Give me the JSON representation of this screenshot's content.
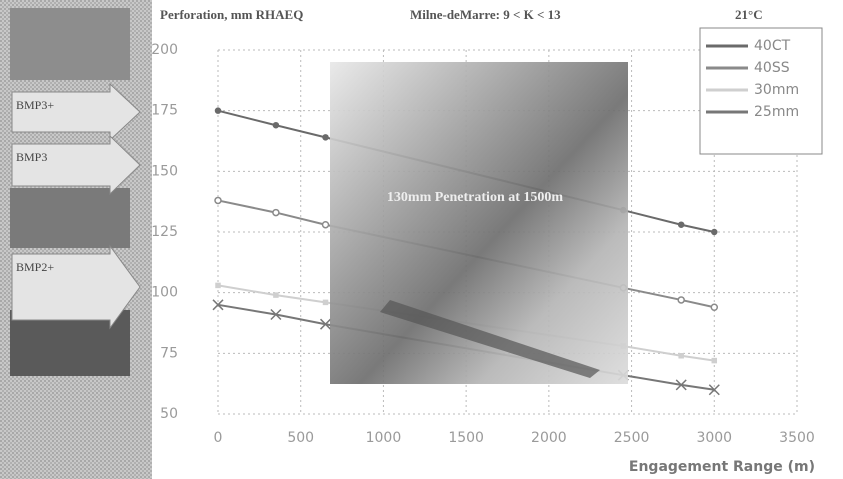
{
  "chart_data": {
    "type": "line",
    "title": "Perforation, mm RHAEQ",
    "subtitle": "Milne-deMarre:  9 < K < 13",
    "annotation": "21°C",
    "overlay_caption": "130mm Penetration at 1500m",
    "side_labels": [
      "BMP3+",
      "BMP3",
      "BMP2+"
    ],
    "x_label": "Engagement Range (m)",
    "x": [
      0,
      350,
      650,
      2450,
      2800,
      3000
    ],
    "series": [
      {
        "name": "40CT",
        "color": "#6a6a6a",
        "values": [
          175,
          169,
          164,
          134,
          128,
          125
        ]
      },
      {
        "name": "40SS",
        "color": "#8a8a8a",
        "values": [
          138,
          133,
          128,
          102,
          97,
          94
        ]
      },
      {
        "name": "30mm",
        "color": "#cfcfcf",
        "values": [
          103,
          99,
          96,
          78,
          74,
          72
        ]
      },
      {
        "name": "25mm",
        "color": "#777777",
        "values": [
          95,
          91,
          87,
          66,
          62,
          60
        ]
      }
    ],
    "xlim": [
      0,
      3500
    ],
    "xticks": [
      0,
      500,
      1000,
      1500,
      2000,
      2500,
      3000,
      3500
    ],
    "ylim": [
      50,
      200
    ],
    "yticks": [
      50,
      75,
      100,
      125,
      150,
      175,
      200
    ],
    "grid": true,
    "legend": "upper right"
  }
}
